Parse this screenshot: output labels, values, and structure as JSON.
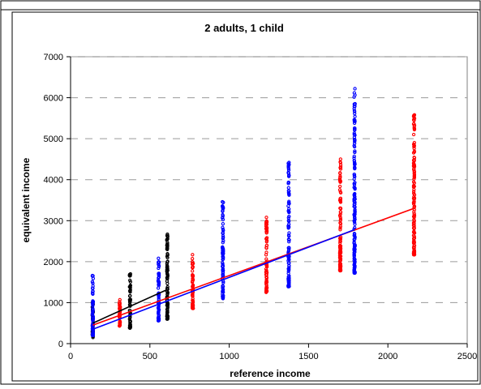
{
  "chart_data": {
    "type": "scatter",
    "title": "2 adults, 1 child",
    "xlabel": "reference income",
    "ylabel": "equivalent income",
    "xlim": [
      0,
      2500
    ],
    "ylim": [
      0,
      7000
    ],
    "x_ticks": [
      0,
      500,
      1000,
      1500,
      2000,
      2500
    ],
    "y_ticks": [
      0,
      1000,
      2000,
      3000,
      4000,
      5000,
      6000,
      7000
    ],
    "grid": "horizontal dashed",
    "series_colors": [
      "#000000",
      "#ff0000",
      "#0000ff"
    ],
    "columns": [
      {
        "color": "#000000",
        "x": 140,
        "ymin": 150,
        "ymax": 1000
      },
      {
        "color": "#0000ff",
        "x": 140,
        "ymin": 200,
        "ymax": 1660
      },
      {
        "color": "#ff0000",
        "x": 310,
        "ymin": 430,
        "ymax": 1070
      },
      {
        "color": "#000000",
        "x": 375,
        "ymin": 380,
        "ymax": 1700
      },
      {
        "color": "#0000ff",
        "x": 555,
        "ymin": 560,
        "ymax": 2080
      },
      {
        "color": "#000000",
        "x": 610,
        "ymin": 600,
        "ymax": 2670
      },
      {
        "color": "#ff0000",
        "x": 770,
        "ymin": 860,
        "ymax": 2170
      },
      {
        "color": "#0000ff",
        "x": 960,
        "ymin": 1100,
        "ymax": 3460
      },
      {
        "color": "#ff0000",
        "x": 1235,
        "ymin": 1250,
        "ymax": 3080
      },
      {
        "color": "#0000ff",
        "x": 1375,
        "ymin": 1390,
        "ymax": 4420
      },
      {
        "color": "#ff0000",
        "x": 1700,
        "ymin": 1780,
        "ymax": 4500
      },
      {
        "color": "#0000ff",
        "x": 1790,
        "ymin": 1720,
        "ymax": 6220
      },
      {
        "color": "#ff0000",
        "x": 2165,
        "ymin": 2170,
        "ymax": 5580
      }
    ],
    "trend_lines": [
      {
        "color": "#000000",
        "points": [
          [
            140,
            500
          ],
          [
            610,
            1320
          ]
        ]
      },
      {
        "color": "#ff0000",
        "points": [
          [
            140,
            450
          ],
          [
            2165,
            3300
          ]
        ]
      },
      {
        "color": "#0000ff",
        "points": [
          [
            140,
            350
          ],
          [
            1790,
            2780
          ]
        ]
      }
    ]
  }
}
